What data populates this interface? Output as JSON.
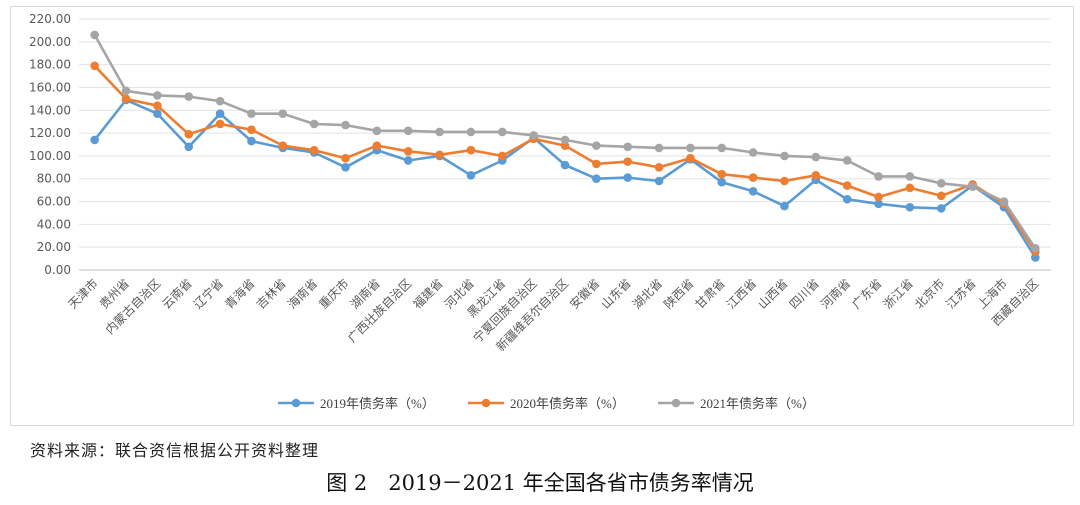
{
  "source_note": "资料来源：联合资信根据公开资料整理",
  "figure_caption": "图 2　2019－2021 年全国各省市债务率情况",
  "chart_data": {
    "type": "line",
    "title": "",
    "xlabel": "",
    "ylabel": "",
    "ylim": [
      0,
      220
    ],
    "y_step": 20,
    "y_tick_labels": [
      "0.00",
      "20.00",
      "40.00",
      "60.00",
      "80.00",
      "100.00",
      "120.00",
      "140.00",
      "160.00",
      "180.00",
      "200.00",
      "220.00"
    ],
    "grid": true,
    "legend_position": "bottom",
    "categories": [
      "天津市",
      "贵州省",
      "内蒙古自治区",
      "云南省",
      "辽宁省",
      "青海省",
      "吉林省",
      "海南省",
      "重庆市",
      "湖南省",
      "广西壮族自治区",
      "福建省",
      "河北省",
      "黑龙江省",
      "宁夏回族自治区",
      "新疆维吾尔自治区",
      "安徽省",
      "山东省",
      "湖北省",
      "陕西省",
      "甘肃省",
      "江西省",
      "山西省",
      "四川省",
      "河南省",
      "广东省",
      "浙江省",
      "北京市",
      "江苏省",
      "上海市",
      "西藏自治区"
    ],
    "series": [
      {
        "name": "2019年债务率（%）",
        "color": "#5b9bd5",
        "values": [
          114,
          149,
          137,
          108,
          137,
          113,
          107,
          103,
          90,
          105,
          96,
          100,
          83,
          96,
          116,
          92,
          80,
          81,
          78,
          97,
          77,
          69,
          56,
          79,
          62,
          58,
          55,
          54,
          74,
          55,
          11
        ]
      },
      {
        "name": "2020年债务率（%）",
        "color": "#ed7d31",
        "values": [
          179,
          150,
          144,
          119,
          128,
          123,
          109,
          105,
          98,
          109,
          104,
          101,
          105,
          100,
          115,
          109,
          93,
          95,
          90,
          98,
          84,
          81,
          78,
          83,
          74,
          64,
          72,
          65,
          75,
          58,
          16
        ]
      },
      {
        "name": "2021年债务率（%）",
        "color": "#a5a5a5",
        "values": [
          206,
          157,
          153,
          152,
          148,
          137,
          137,
          128,
          127,
          122,
          122,
          121,
          121,
          121,
          118,
          114,
          109,
          108,
          107,
          107,
          107,
          103,
          100,
          99,
          96,
          82,
          82,
          76,
          73,
          60,
          19
        ]
      }
    ]
  }
}
